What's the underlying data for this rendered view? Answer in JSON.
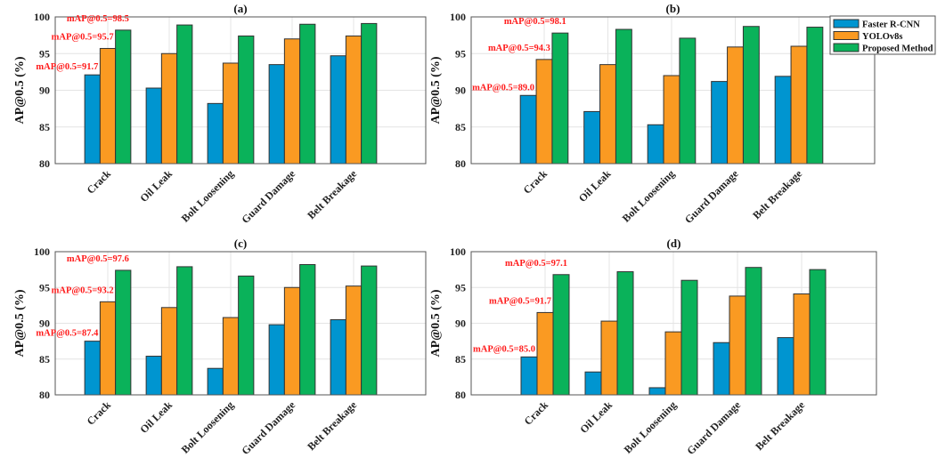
{
  "colors": {
    "Faster R-CNN": "#0095d0",
    "YOLOv8s": "#fa9a22",
    "Proposed Method": "#0ab25a"
  },
  "chart_data": [
    {
      "type": "bar",
      "title": "(a)",
      "ylabel": "AP@0.5 (%)",
      "ylim": [
        80,
        100
      ],
      "yticks": [
        80,
        85,
        90,
        95,
        100
      ],
      "grid": true,
      "categories": [
        "Crack",
        "Oil Leak",
        "Bolt Loosening",
        "Guard Damage",
        "Belt Breakage"
      ],
      "series": [
        {
          "name": "Faster R-CNN",
          "values": [
            92.1,
            90.3,
            88.2,
            93.5,
            94.7
          ]
        },
        {
          "name": "YOLOv8s",
          "values": [
            95.7,
            95.0,
            93.7,
            97.0,
            97.4
          ]
        },
        {
          "name": "Proposed Method",
          "values": [
            98.2,
            98.9,
            97.4,
            99.0,
            99.1
          ]
        }
      ],
      "annotations": [
        "mAP@0.5=91.7",
        "mAP@0.5=95.7",
        "mAP@0.5=98.5"
      ]
    },
    {
      "type": "bar",
      "title": "(b)",
      "ylabel": "AP@0.5 (%)",
      "ylim": [
        80,
        100
      ],
      "yticks": [
        80,
        85,
        90,
        95,
        100
      ],
      "grid": true,
      "legend": "top-right",
      "categories": [
        "Crack",
        "Oil Leak",
        "Bolt Loosening",
        "Guard Damage",
        "Belt Breakage"
      ],
      "series": [
        {
          "name": "Faster R-CNN",
          "values": [
            89.3,
            87.1,
            85.3,
            91.2,
            91.9
          ]
        },
        {
          "name": "YOLOv8s",
          "values": [
            94.2,
            93.5,
            92.0,
            95.9,
            96.0
          ]
        },
        {
          "name": "Proposed Method",
          "values": [
            97.8,
            98.3,
            97.1,
            98.7,
            98.6
          ]
        }
      ],
      "annotations": [
        "mAP@0.5=89.0",
        "mAP@0.5=94.3",
        "mAP@0.5=98.1"
      ]
    },
    {
      "type": "bar",
      "title": "(c)",
      "ylabel": "AP@0.5 (%)",
      "ylim": [
        80,
        100
      ],
      "yticks": [
        80,
        85,
        90,
        95,
        100
      ],
      "grid": true,
      "categories": [
        "Crack",
        "Oil Leak",
        "Bolt Loosening",
        "Guard Damage",
        "Belt Breakage"
      ],
      "series": [
        {
          "name": "Faster R-CNN",
          "values": [
            87.5,
            85.4,
            83.7,
            89.8,
            90.5
          ]
        },
        {
          "name": "YOLOv8s",
          "values": [
            93.0,
            92.2,
            90.8,
            95.0,
            95.2
          ]
        },
        {
          "name": "Proposed Method",
          "values": [
            97.4,
            97.9,
            96.6,
            98.2,
            98.0
          ]
        }
      ],
      "annotations": [
        "mAP@0.5=87.4",
        "mAP@0.5=93.2",
        "mAP@0.5=97.6"
      ]
    },
    {
      "type": "bar",
      "title": "(d)",
      "ylabel": "AP@0.5 (%)",
      "ylim": [
        80,
        100
      ],
      "yticks": [
        80,
        85,
        90,
        95,
        100
      ],
      "grid": true,
      "categories": [
        "Crack",
        "Oil Leak",
        "Bolt Loosening",
        "Guard Damage",
        "Belt Breakage"
      ],
      "series": [
        {
          "name": "Faster R-CNN",
          "values": [
            85.3,
            83.2,
            81.0,
            87.3,
            88.0
          ]
        },
        {
          "name": "YOLOv8s",
          "values": [
            91.5,
            90.3,
            88.8,
            93.8,
            94.1
          ]
        },
        {
          "name": "Proposed Method",
          "values": [
            96.8,
            97.2,
            96.0,
            97.8,
            97.5
          ]
        }
      ],
      "annotations": [
        "mAP@0.5=85.0",
        "mAP@0.5=91.7",
        "mAP@0.5=97.1"
      ]
    }
  ]
}
